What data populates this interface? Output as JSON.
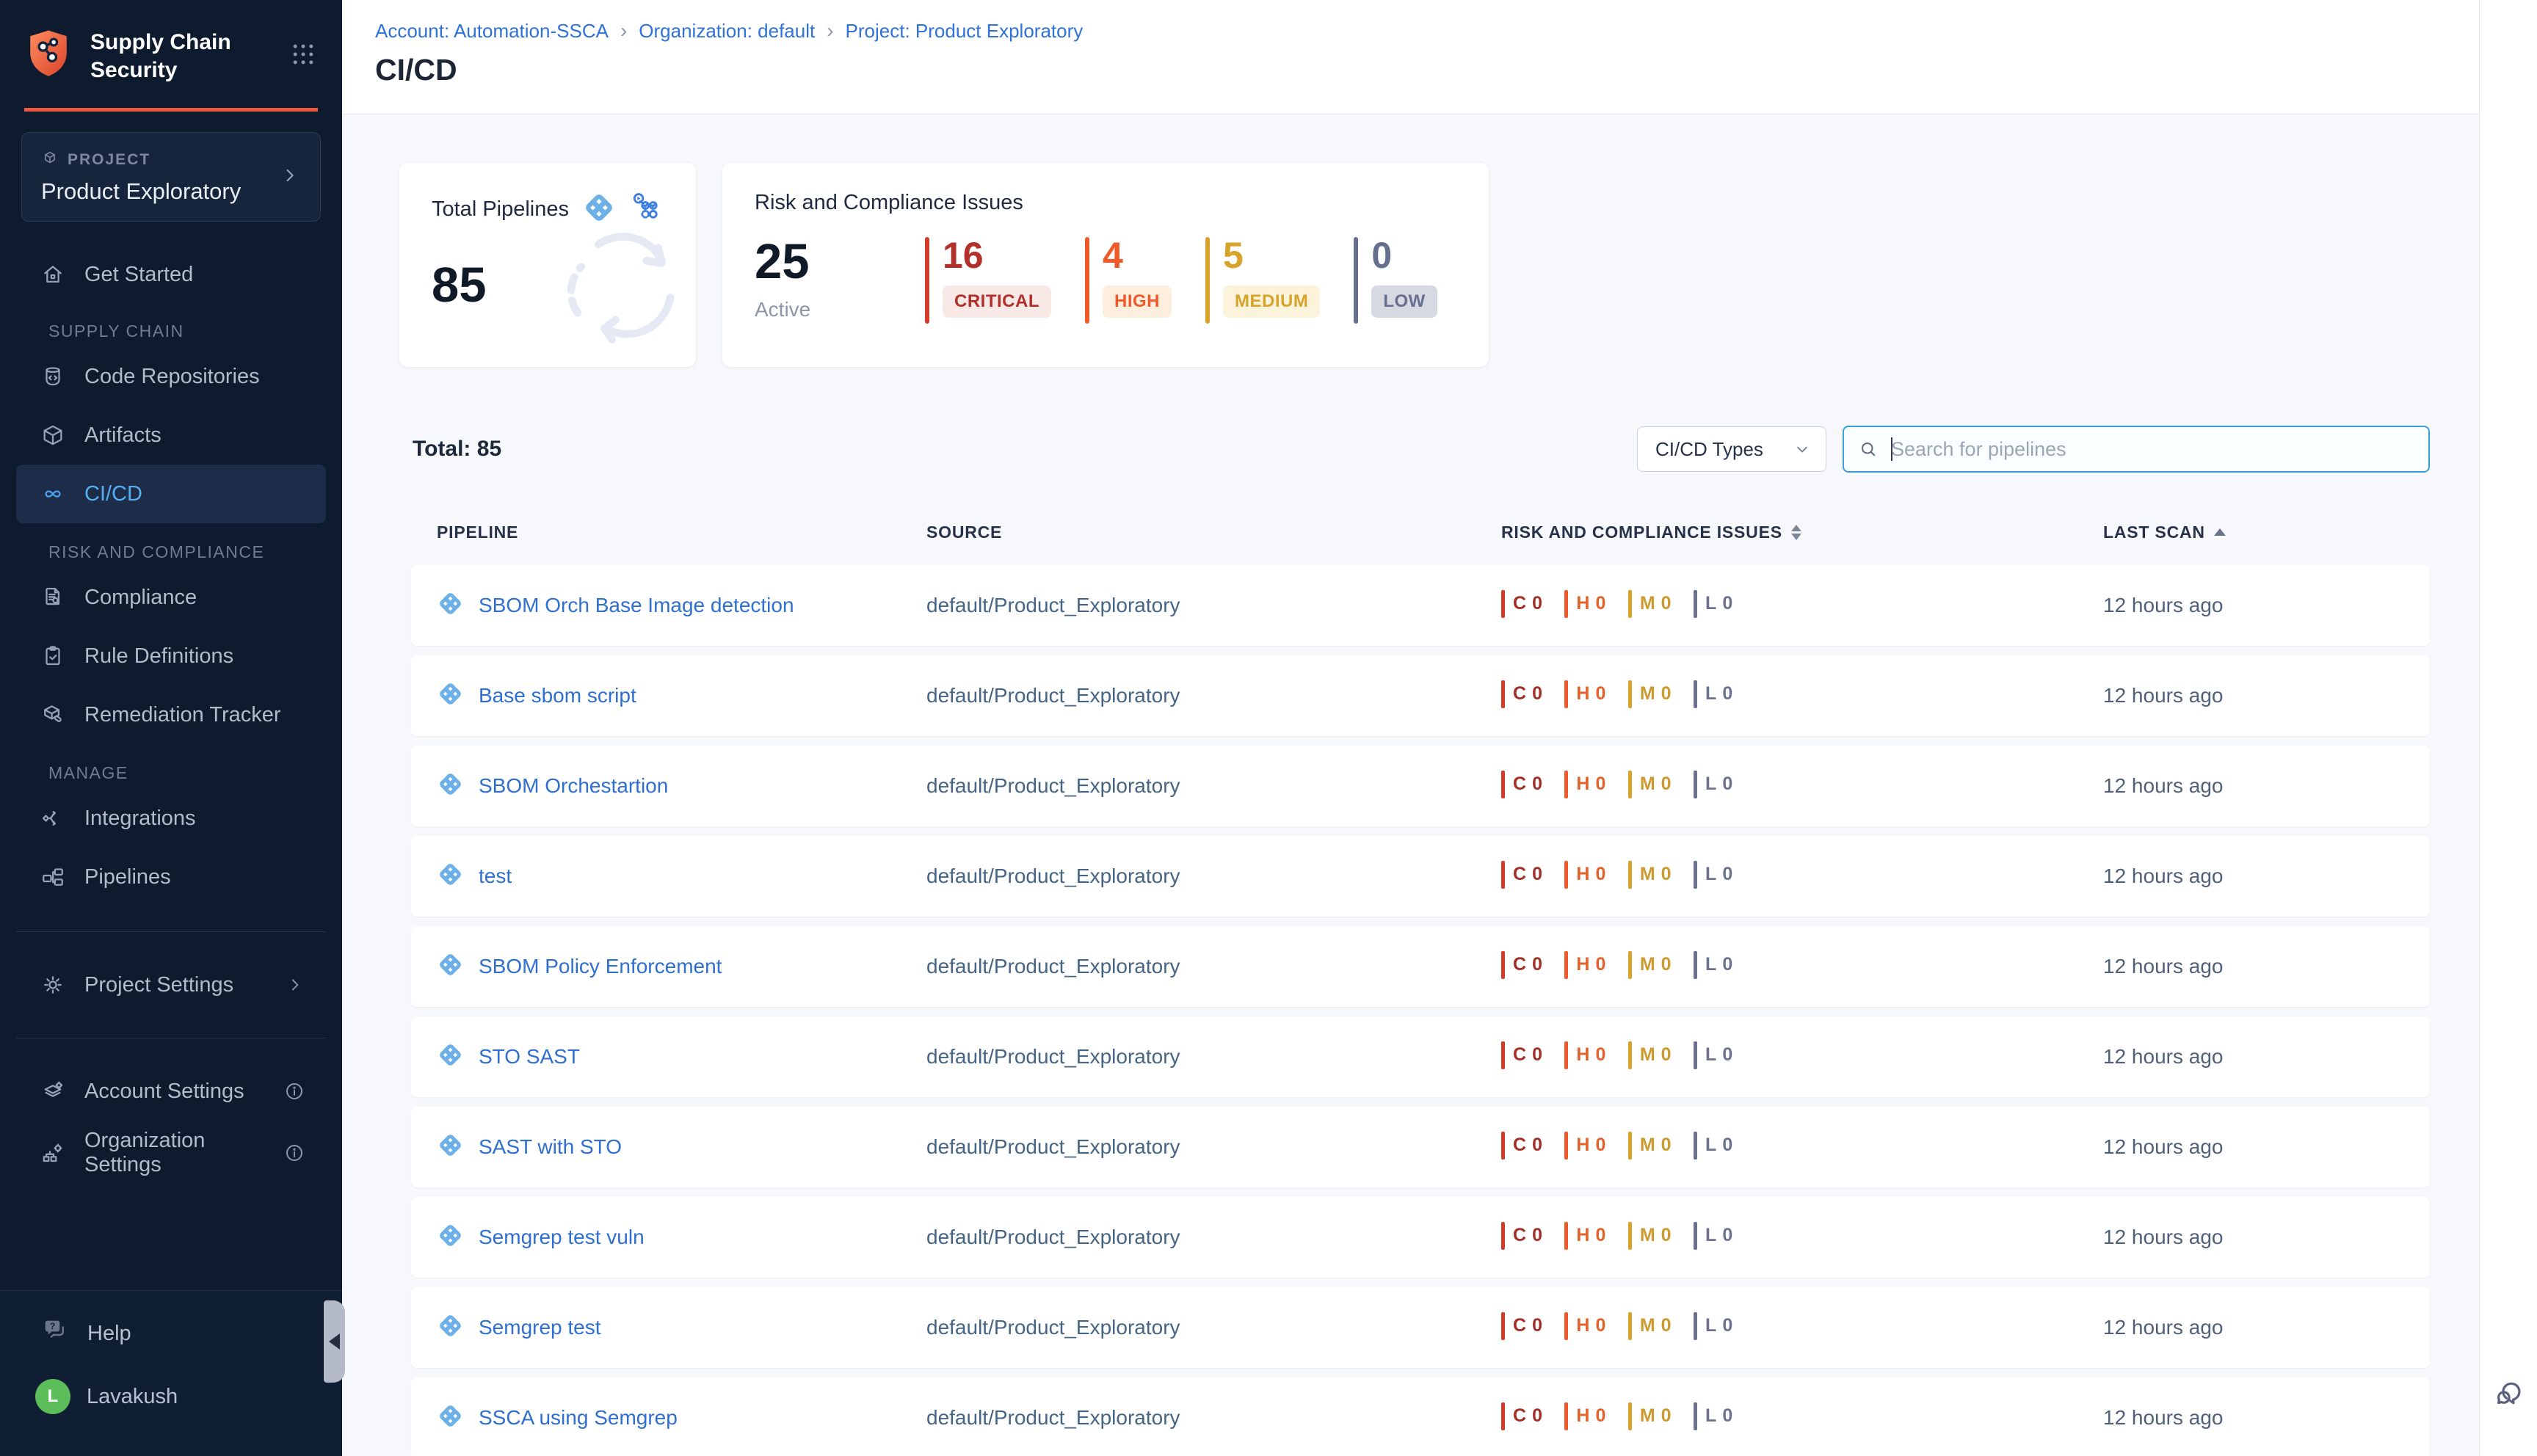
{
  "brand": {
    "line1": "Supply Chain",
    "line2": "Security",
    "accent_color": "#f0593e"
  },
  "project_selector": {
    "label": "PROJECT",
    "name": "Product Exploratory"
  },
  "sidebar": {
    "get_started": "Get Started",
    "sections": [
      {
        "label": "SUPPLY CHAIN",
        "items": [
          {
            "label": "Code Repositories",
            "icon": "repository-icon",
            "active": false
          },
          {
            "label": "Artifacts",
            "icon": "artifact-box-icon",
            "active": false
          },
          {
            "label": "CI/CD",
            "icon": "cicd-infinity-icon",
            "active": true
          }
        ]
      },
      {
        "label": "RISK AND COMPLIANCE",
        "items": [
          {
            "label": "Compliance",
            "icon": "compliance-doc-icon",
            "active": false
          },
          {
            "label": "Rule Definitions",
            "icon": "rule-definitions-icon",
            "active": false
          },
          {
            "label": "Remediation Tracker",
            "icon": "remediation-tracker-icon",
            "active": false
          }
        ]
      },
      {
        "label": "MANAGE",
        "items": [
          {
            "label": "Integrations",
            "icon": "integrations-icon",
            "active": false
          },
          {
            "label": "Pipelines",
            "icon": "pipelines-icon",
            "active": false
          }
        ]
      }
    ],
    "project_settings": "Project Settings",
    "account_settings": "Account Settings",
    "organization_settings": "Organization Settings",
    "help": "Help",
    "user": {
      "initial": "L",
      "name": "Lavakush",
      "avatar_color": "#5cbd5a"
    }
  },
  "header": {
    "breadcrumb": [
      "Account: Automation-SSCA",
      "Organization: default",
      "Project: Product Exploratory"
    ],
    "title": "CI/CD",
    "link_color": "#2f72d9"
  },
  "cards": {
    "total": {
      "label": "Total Pipelines",
      "value": "85"
    },
    "risk": {
      "label": "Risk and Compliance Issues",
      "count": "25",
      "count_label": "Active",
      "severities": [
        {
          "count": "16",
          "label": "CRITICAL",
          "text_color": "#b23029",
          "bar_color": "#d43b2b",
          "badge_bg": "#f8e8e6"
        },
        {
          "count": "4",
          "label": "HIGH",
          "text_color": "#f05a2b",
          "bar_color": "#f05a2b",
          "badge_bg": "#fdeede"
        },
        {
          "count": "5",
          "label": "MEDIUM",
          "text_color": "#d7a32b",
          "bar_color": "#d7a32b",
          "badge_bg": "#fbf3da"
        },
        {
          "count": "0",
          "label": "LOW",
          "text_color": "#666f8e",
          "bar_color": "#666f8e",
          "badge_bg": "#d6d8e2"
        }
      ]
    }
  },
  "toolbar": {
    "total_label": "Total: 85",
    "type_filter_label": "CI/CD Types",
    "search_placeholder": "Search for pipelines"
  },
  "table": {
    "columns": [
      "PIPELINE",
      "SOURCE",
      "RISK AND COMPLIANCE ISSUES",
      "LAST SCAN"
    ],
    "severity_keys": [
      {
        "letter": "C",
        "letter_color": "#a33028",
        "bar_color": "#d43b2b"
      },
      {
        "letter": "H",
        "letter_color": "#e2622c",
        "bar_color": "#f05a2b"
      },
      {
        "letter": "M",
        "letter_color": "#cc9a2e",
        "bar_color": "#d7a32b"
      },
      {
        "letter": "L",
        "letter_color": "#6b7290",
        "bar_color": "#6b7290"
      }
    ],
    "rows": [
      {
        "pipeline": "SBOM Orch Base Image detection",
        "source": "default/Product_Exploratory",
        "issues": {
          "C": "0",
          "H": "0",
          "M": "0",
          "L": "0"
        },
        "last_scan": "12 hours ago"
      },
      {
        "pipeline": "Base sbom script",
        "source": "default/Product_Exploratory",
        "issues": {
          "C": "0",
          "H": "0",
          "M": "0",
          "L": "0"
        },
        "last_scan": "12 hours ago"
      },
      {
        "pipeline": "SBOM Orchestartion",
        "source": "default/Product_Exploratory",
        "issues": {
          "C": "0",
          "H": "0",
          "M": "0",
          "L": "0"
        },
        "last_scan": "12 hours ago"
      },
      {
        "pipeline": "test",
        "source": "default/Product_Exploratory",
        "issues": {
          "C": "0",
          "H": "0",
          "M": "0",
          "L": "0"
        },
        "last_scan": "12 hours ago"
      },
      {
        "pipeline": "SBOM Policy Enforcement",
        "source": "default/Product_Exploratory",
        "issues": {
          "C": "0",
          "H": "0",
          "M": "0",
          "L": "0"
        },
        "last_scan": "12 hours ago"
      },
      {
        "pipeline": "STO SAST",
        "source": "default/Product_Exploratory",
        "issues": {
          "C": "0",
          "H": "0",
          "M": "0",
          "L": "0"
        },
        "last_scan": "12 hours ago"
      },
      {
        "pipeline": "SAST with STO",
        "source": "default/Product_Exploratory",
        "issues": {
          "C": "0",
          "H": "0",
          "M": "0",
          "L": "0"
        },
        "last_scan": "12 hours ago"
      },
      {
        "pipeline": "Semgrep test vuln",
        "source": "default/Product_Exploratory",
        "issues": {
          "C": "0",
          "H": "0",
          "M": "0",
          "L": "0"
        },
        "last_scan": "12 hours ago"
      },
      {
        "pipeline": "Semgrep test",
        "source": "default/Product_Exploratory",
        "issues": {
          "C": "0",
          "H": "0",
          "M": "0",
          "L": "0"
        },
        "last_scan": "12 hours ago"
      },
      {
        "pipeline": "SSCA using Semgrep",
        "source": "default/Product_Exploratory",
        "issues": {
          "C": "0",
          "H": "0",
          "M": "0",
          "L": "0"
        },
        "last_scan": "12 hours ago"
      }
    ]
  }
}
